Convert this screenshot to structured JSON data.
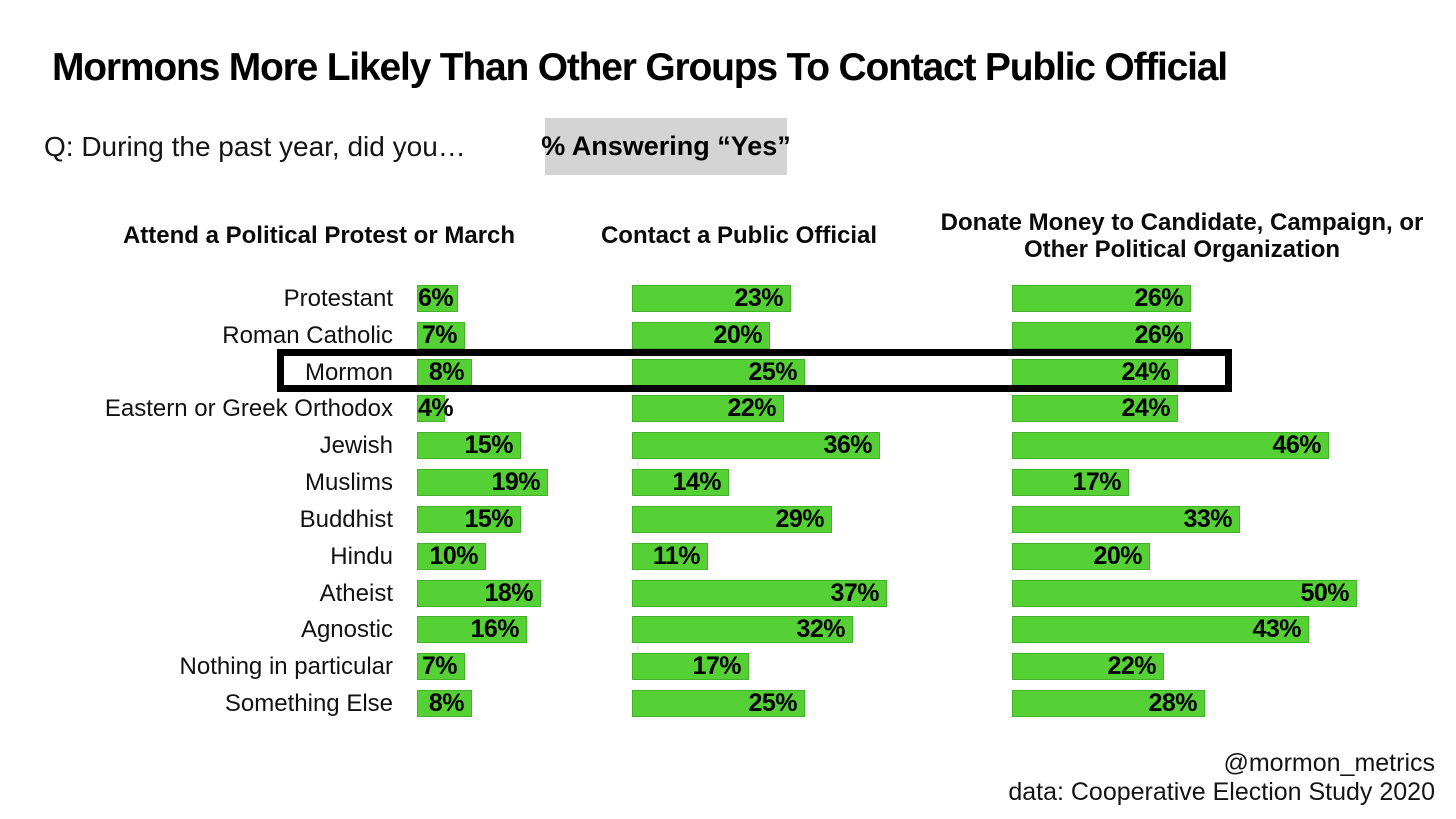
{
  "title": "Mormons More Likely Than Other Groups To Contact Public Official",
  "subtitle": {
    "question": "Q: During the past year, did you…",
    "highlight": "% Answering “Yes”"
  },
  "chart_data": {
    "type": "bar",
    "orientation": "horizontal",
    "unit": "%",
    "bar_color": "#55d136",
    "highlight_box_color": "#000000",
    "highlighted_category": "Mormon",
    "xlim": [
      0,
      55
    ],
    "grid": false,
    "categories": [
      "Protestant",
      "Roman Catholic",
      "Mormon",
      "Eastern or Greek Orthodox",
      "Jewish",
      "Muslims",
      "Buddhist",
      "Hindu",
      "Atheist",
      "Agnostic",
      "Nothing in particular",
      "Something Else"
    ],
    "series": [
      {
        "name": "Attend a Political Protest or March",
        "values": [
          6,
          7,
          8,
          4,
          15,
          19,
          15,
          10,
          18,
          16,
          7,
          8
        ]
      },
      {
        "name": "Contact a Public Official",
        "values": [
          23,
          20,
          25,
          22,
          36,
          14,
          29,
          11,
          37,
          32,
          17,
          25
        ]
      },
      {
        "name": "Donate Money to Candidate, Campaign, or Other Political Organization",
        "values": [
          26,
          26,
          24,
          24,
          46,
          17,
          33,
          20,
          50,
          43,
          22,
          28
        ]
      }
    ]
  },
  "footer": {
    "handle": "@mormon_metrics",
    "source": "data: Cooperative Election Study 2020"
  }
}
